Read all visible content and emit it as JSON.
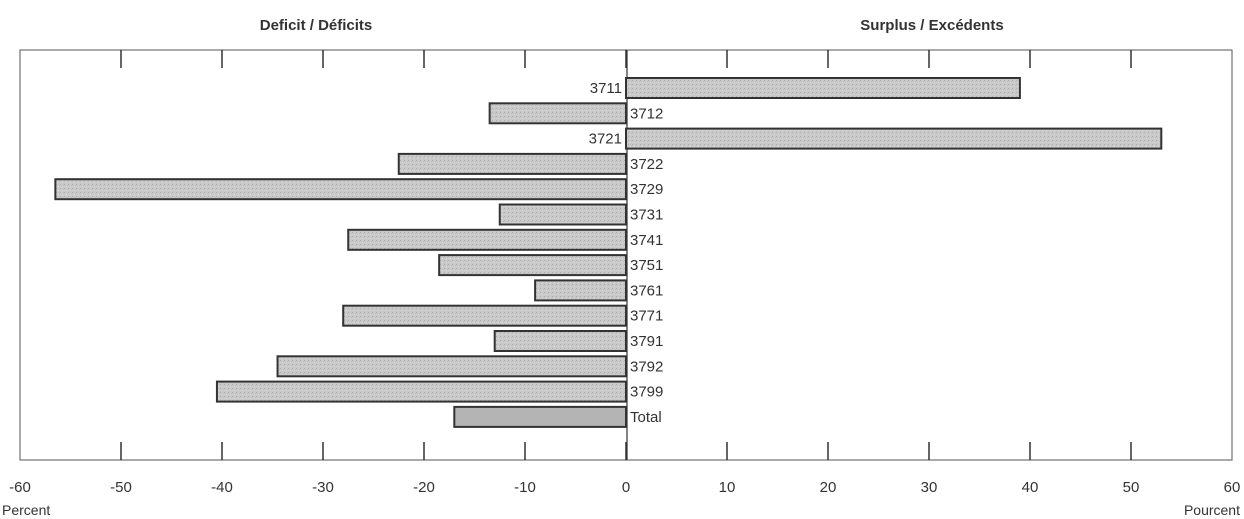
{
  "chart_data": {
    "type": "bar",
    "orientation": "horizontal",
    "headers": {
      "left": "Deficit / Déficits",
      "right": "Surplus / Excédents"
    },
    "xlabel_left": "Percent",
    "xlabel_right": "Pourcent",
    "xlim": [
      -60,
      60
    ],
    "ticks": [
      -60,
      -50,
      -40,
      -30,
      -20,
      -10,
      0,
      10,
      20,
      30,
      40,
      50,
      60
    ],
    "tick_labels": [
      "-60",
      "-50",
      "-40",
      "-30",
      "-20",
      "-10",
      "0",
      "10",
      "20",
      "30",
      "40",
      "50",
      "60"
    ],
    "categories": [
      "3711",
      "3712",
      "3721",
      "3722",
      "3729",
      "3731",
      "3741",
      "3751",
      "3761",
      "3771",
      "3791",
      "3792",
      "3799",
      "Total"
    ],
    "values": [
      39,
      -13.5,
      53,
      -22.5,
      -56.5,
      -12.5,
      -27.5,
      -18.5,
      -9,
      -28,
      -13,
      -34.5,
      -40.5,
      -17
    ],
    "grid": false,
    "colors": {
      "bar_fill": "#c8c8c8",
      "total_fill": "#b4b4b4",
      "bar_stroke": "#333333"
    }
  }
}
